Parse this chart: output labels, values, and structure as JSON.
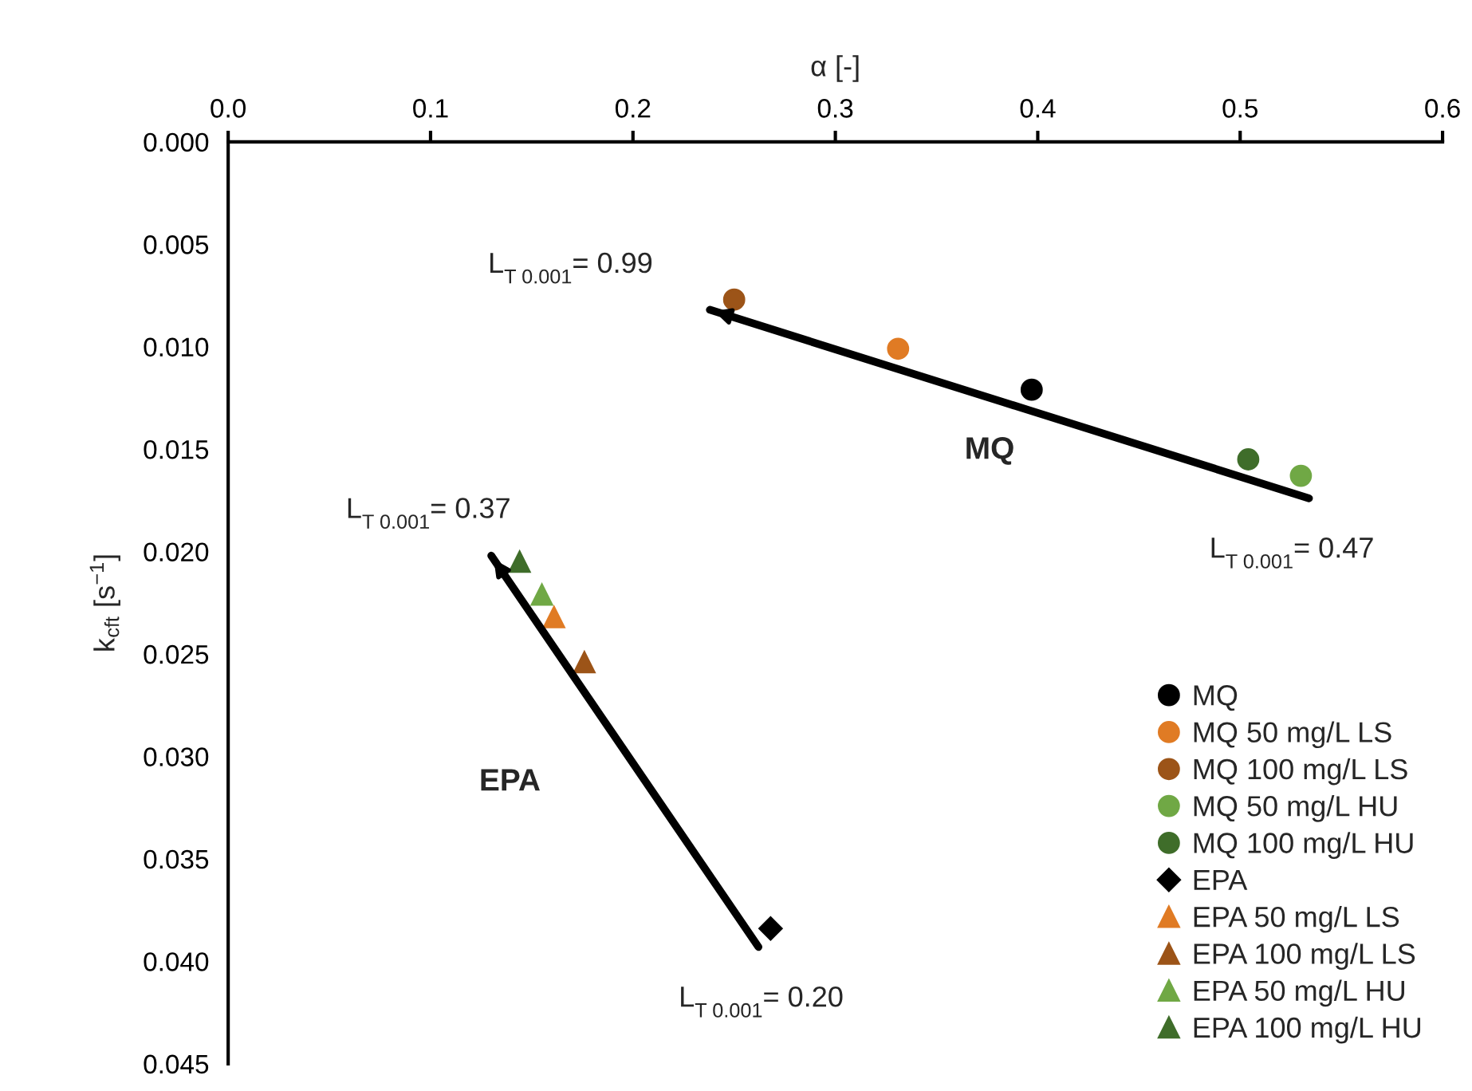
{
  "chart_data": {
    "type": "scatter",
    "xlabel": "α [-]",
    "ylabel": "k$_{cft}$ [s$^{−1}$]",
    "xlim": [
      0,
      0.6
    ],
    "xticks": [
      {
        "value": 0,
        "label": "0.0"
      },
      0.1,
      0.2,
      0.3,
      0.4,
      0.5,
      0.6
    ],
    "ylim": [
      0.045,
      0
    ],
    "yticks": [
      {
        "value": 0,
        "label": "0.000"
      },
      0.005,
      {
        "value": 0.01,
        "label": "0.010"
      },
      0.015,
      {
        "value": 0.02,
        "label": "0.020"
      },
      0.025,
      {
        "value": 0.03,
        "label": "0.030"
      },
      0.035,
      {
        "value": 0.04,
        "label": "0.040"
      },
      0.045
    ],
    "grid": false,
    "legend": "bottom right",
    "series": [
      {
        "name": "MQ",
        "color": "#000000",
        "marker": "circle",
        "x": [
          0.397
        ],
        "values": [
          0.0121
        ]
      },
      {
        "name": "MQ 50 mg/L LS",
        "color": "#e07b24",
        "marker": "circle",
        "x": [
          0.331
        ],
        "values": [
          0.0101
        ]
      },
      {
        "name": "MQ 100 mg/L LS",
        "color": "#9c5418",
        "marker": "circle",
        "x": [
          0.25
        ],
        "values": [
          0.0077
        ]
      },
      {
        "name": "MQ 50 mg/L HU",
        "color": "#70a845",
        "marker": "circle",
        "x": [
          0.53
        ],
        "values": [
          0.0163
        ]
      },
      {
        "name": "MQ 100 mg/L HU",
        "color": "#3f6d2a",
        "marker": "circle",
        "x": [
          0.504
        ],
        "values": [
          0.0155
        ]
      },
      {
        "name": "EPA",
        "color": "#000000",
        "marker": "diamond",
        "x": [
          0.268
        ],
        "values": [
          0.0384
        ]
      },
      {
        "name": "EPA 50 mg/L LS",
        "color": "#e07b24",
        "marker": "triangle",
        "x": [
          0.161
        ],
        "values": [
          0.0232
        ]
      },
      {
        "name": "EPA 100 mg/L LS",
        "color": "#9c5418",
        "marker": "triangle",
        "x": [
          0.176
        ],
        "values": [
          0.0254
        ]
      },
      {
        "name": "EPA 50 mg/L HU",
        "color": "#70a845",
        "marker": "triangle",
        "x": [
          0.155
        ],
        "values": [
          0.0221
        ]
      },
      {
        "name": "EPA 100 mg/L HU",
        "color": "#3f6d2a",
        "marker": "triangle",
        "x": [
          0.144
        ],
        "values": [
          0.0205
        ]
      },
      {
        "type": "line",
        "color": "#000000",
        "marker": "none",
        "x": [
          0.534,
          0.238
        ],
        "values": [
          0.0174,
          0.0082
        ]
      },
      {
        "type": "line",
        "color": "#000000",
        "marker": "none",
        "x": [
          0.262,
          0.13
        ],
        "values": [
          0.0393,
          0.0202
        ]
      }
    ],
    "annotations": [
      "MQ",
      "EPA",
      "L$_{T 0.001}$= 0.99",
      "L$_{T 0.001}$= 0.37",
      "L$_{T 0.001}$= 0.47",
      "L$_{T 0.001}$= 0.20"
    ]
  }
}
